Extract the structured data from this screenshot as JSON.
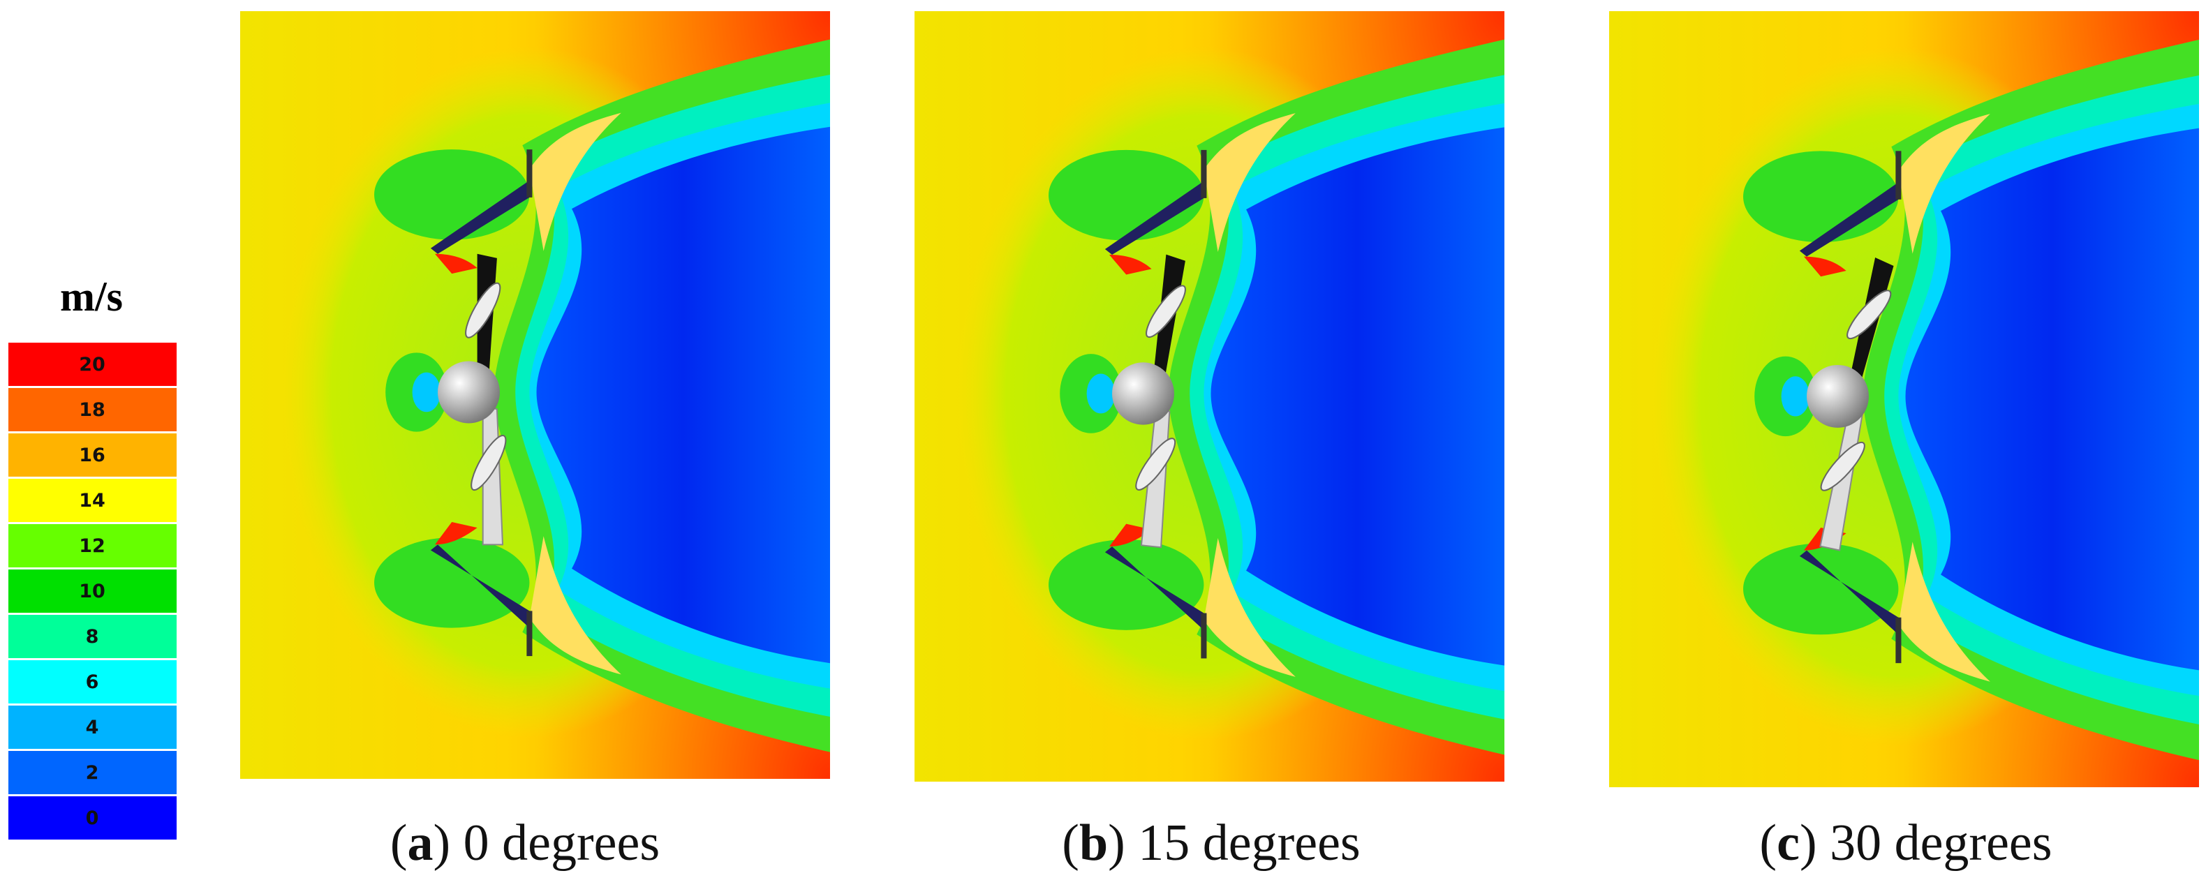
{
  "legend": {
    "unit": "m/s",
    "levels": [
      {
        "value": 20,
        "color": "#ff0000"
      },
      {
        "value": 18,
        "color": "#ff6600"
      },
      {
        "value": 16,
        "color": "#ffb300"
      },
      {
        "value": 14,
        "color": "#ffff00"
      },
      {
        "value": 12,
        "color": "#66ff00"
      },
      {
        "value": 10,
        "color": "#00e000"
      },
      {
        "value": 8,
        "color": "#00ff99"
      },
      {
        "value": 6,
        "color": "#00ffff"
      },
      {
        "value": 4,
        "color": "#00b3ff"
      },
      {
        "value": 2,
        "color": "#0066ff"
      },
      {
        "value": 0,
        "color": "#0000ff"
      }
    ]
  },
  "panels": [
    {
      "caption": [
        "(",
        "a",
        ") 0 degrees"
      ]
    },
    {
      "caption": [
        "(",
        "b",
        ") 15 degrees"
      ]
    },
    {
      "caption": [
        "(",
        "c",
        ") 30 degrees"
      ]
    }
  ]
}
